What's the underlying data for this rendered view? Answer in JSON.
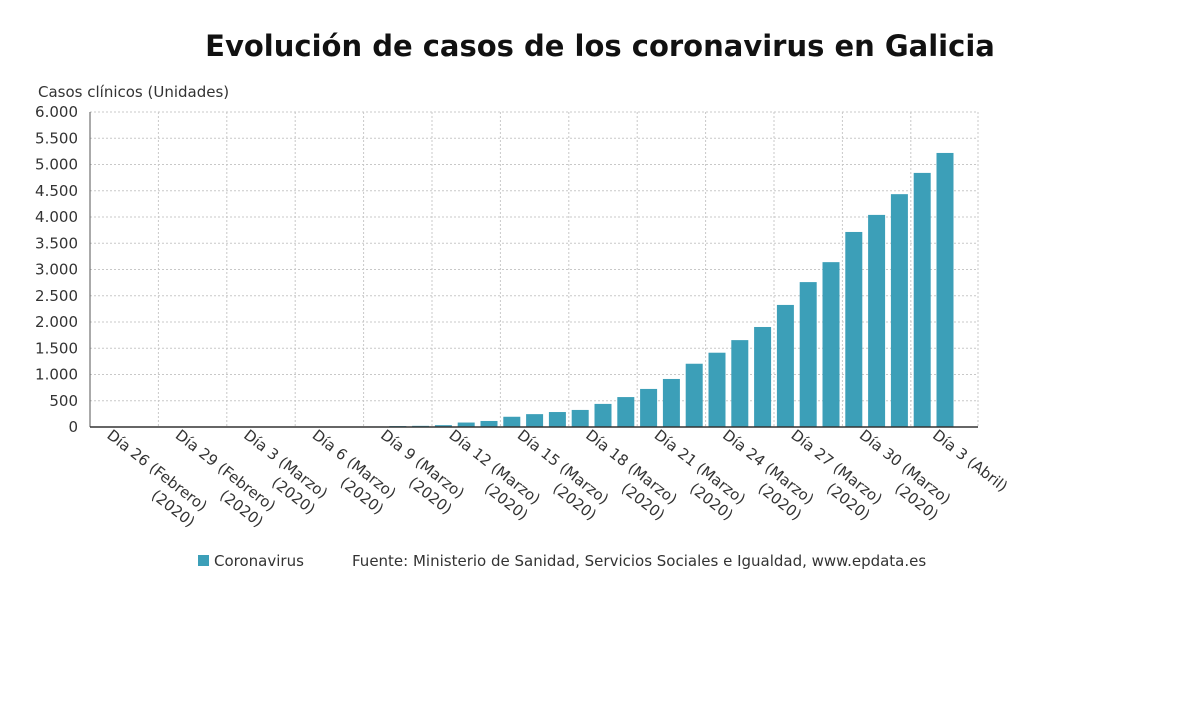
{
  "chart_data": {
    "type": "bar",
    "title": "Evolución de casos de los coronavirus en Galicia",
    "y_label": "Casos clínicos (Unidades)",
    "source": "Fuente: Ministerio de Sanidad, Servicios Sociales e Igualdad, www.epdata.es",
    "categories": [
      [
        "Día 26 (Febrero)",
        "(2020)"
      ],
      null,
      null,
      [
        "Día 29 (Febrero)",
        "(2020)"
      ],
      null,
      null,
      [
        "Día 3 (Marzo)",
        "(2020)"
      ],
      null,
      null,
      [
        "Día 6 (Marzo)",
        "(2020)"
      ],
      null,
      null,
      [
        "Día 9 (Marzo)",
        "(2020)"
      ],
      null,
      null,
      [
        "Día 12 (Marzo)",
        "(2020)"
      ],
      null,
      null,
      [
        "Día 15 (Marzo)",
        "(2020)"
      ],
      null,
      null,
      [
        "Día 18 (Marzo)",
        "(2020)"
      ],
      null,
      null,
      [
        "Día 21 (Marzo)",
        "(2020)"
      ],
      null,
      null,
      [
        "Día 24 (Marzo)",
        "(2020)"
      ],
      null,
      null,
      [
        "Día 27 (Marzo)",
        "(2020)"
      ],
      null,
      null,
      [
        "Día 30 (Marzo)",
        "(2020)"
      ],
      null,
      null,
      null,
      [
        "Día 3 (Abril)"
      ]
    ],
    "series": [
      {
        "name": "Coronavirus",
        "color": "#3c9fb8",
        "values": [
          0,
          0,
          0,
          0,
          0,
          0,
          0,
          1,
          1,
          2,
          4,
          6,
          10,
          18,
          22,
          35,
          85,
          115,
          195,
          245,
          285,
          325,
          440,
          570,
          725,
          915,
          1205,
          1415,
          1655,
          1905,
          2325,
          2760,
          3140,
          3715,
          4040,
          4435,
          4840,
          5220
        ]
      }
    ],
    "ylim": [
      0,
      6000
    ],
    "yticks": [
      {
        "value": 0,
        "label": "0"
      },
      {
        "value": 500,
        "label": "500"
      },
      {
        "value": 1000,
        "label": "1.000"
      },
      {
        "value": 1500,
        "label": "1.500"
      },
      {
        "value": 2000,
        "label": "2.000"
      },
      {
        "value": 2500,
        "label": "2.500"
      },
      {
        "value": 3000,
        "label": "3.000"
      },
      {
        "value": 3500,
        "label": "3.500"
      },
      {
        "value": 4000,
        "label": "4.000"
      },
      {
        "value": 4500,
        "label": "4.500"
      },
      {
        "value": 5000,
        "label": "5.000"
      },
      {
        "value": 5500,
        "label": "5.500"
      },
      {
        "value": 6000,
        "label": "6.000"
      }
    ],
    "grid": true,
    "legend": "bottom"
  }
}
